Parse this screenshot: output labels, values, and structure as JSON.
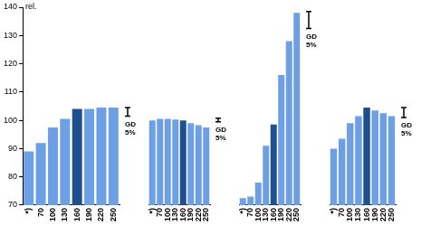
{
  "chart_data": [
    {
      "type": "bar",
      "categories": [
        "*)",
        "70",
        "100",
        "130",
        "160",
        "190",
        "220",
        "250"
      ],
      "values": [
        89,
        92,
        97.5,
        100.5,
        104,
        104,
        104.5,
        104.5
      ],
      "colors": [
        "#6c9fe3",
        "#6c9fe3",
        "#6c9fe3",
        "#6c9fe3",
        "#1e4f8f",
        "#6c9fe3",
        "#6c9fe3",
        "#6c9fe3"
      ],
      "ylim": [
        70,
        140
      ],
      "yticks": [
        70,
        80,
        90,
        100,
        110,
        120,
        130,
        140
      ],
      "y_label": "rel.",
      "grid": false,
      "gd": {
        "low": 101.5,
        "high": 104.5,
        "label": "GD 5%"
      }
    },
    {
      "type": "bar",
      "categories": [
        "*)",
        "70",
        "100",
        "130",
        "160",
        "190",
        "220",
        "250"
      ],
      "values": [
        100,
        100.5,
        100.5,
        100.3,
        100,
        99,
        98.3,
        97.5
      ],
      "colors": [
        "#6c9fe3",
        "#6c9fe3",
        "#6c9fe3",
        "#6c9fe3",
        "#1e4f8f",
        "#6c9fe3",
        "#6c9fe3",
        "#6c9fe3"
      ],
      "ylim": [
        70,
        140
      ],
      "yticks": [
        70,
        80,
        90,
        100,
        110,
        120,
        130,
        140
      ],
      "grid": false,
      "tick_labels": "x",
      "gd": {
        "low": 99.5,
        "high": 100.8,
        "label": "GD 5%"
      }
    },
    {
      "type": "bar",
      "categories": [
        "*)",
        "70",
        "100",
        "130",
        "160",
        "190",
        "220",
        "250"
      ],
      "values": [
        72.5,
        73,
        78,
        91,
        98.5,
        116,
        128,
        138
      ],
      "colors": [
        "#6c9fe3",
        "#6c9fe3",
        "#6c9fe3",
        "#6c9fe3",
        "#1e4f8f",
        "#6c9fe3",
        "#6c9fe3",
        "#6c9fe3"
      ],
      "ylim": [
        70,
        140
      ],
      "yticks": [
        70,
        80,
        90,
        100,
        110,
        120,
        130,
        140
      ],
      "grid": false,
      "tick_labels": "x",
      "gd": {
        "low": 132.5,
        "high": 138.5,
        "label": "GD 5%"
      }
    },
    {
      "type": "bar",
      "categories": [
        "*)",
        "70",
        "100",
        "130",
        "160",
        "190",
        "220",
        "250"
      ],
      "values": [
        90,
        93.5,
        99,
        101.5,
        104.5,
        103.5,
        102.5,
        101.5
      ],
      "colors": [
        "#6c9fe3",
        "#6c9fe3",
        "#6c9fe3",
        "#6c9fe3",
        "#1e4f8f",
        "#6c9fe3",
        "#6c9fe3",
        "#6c9fe3"
      ],
      "ylim": [
        70,
        140
      ],
      "yticks": [
        70,
        80,
        90,
        100,
        110,
        120,
        130,
        140
      ],
      "grid": false,
      "tick_labels": "x",
      "gd": {
        "low": 101,
        "high": 104.5,
        "label": "GD 5%"
      }
    }
  ]
}
